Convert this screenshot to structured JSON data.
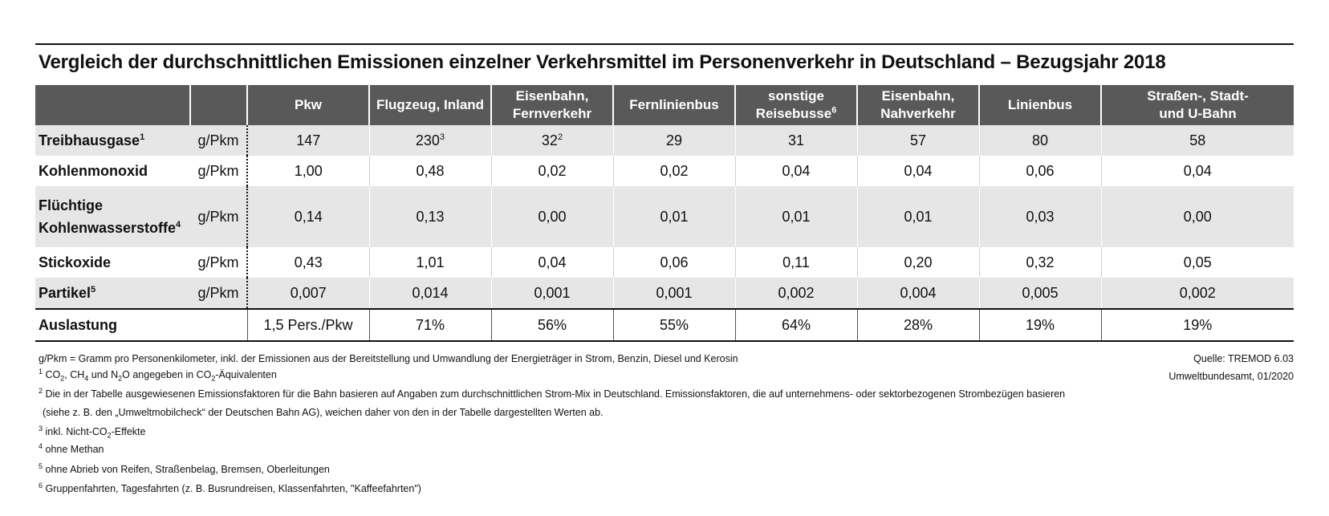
{
  "title": "Vergleich der durchschnittlichen Emissionen einzelner Verkehrsmittel im Personenverkehr in Deutschland – Bezugsjahr 2018",
  "columns": [
    {
      "l1": "Pkw",
      "l2": "",
      "sup": ""
    },
    {
      "l1": "Flugzeug, Inland",
      "l2": "",
      "sup": ""
    },
    {
      "l1": "Eisenbahn,",
      "l2": "Fernverkehr",
      "sup": ""
    },
    {
      "l1": "Fernlinienbus",
      "l2": "",
      "sup": ""
    },
    {
      "l1": "sonstige",
      "l2": "Reisebusse",
      "sup": "6"
    },
    {
      "l1": "Eisenbahn,",
      "l2": "Nahverkehr",
      "sup": ""
    },
    {
      "l1": "Linienbus",
      "l2": "",
      "sup": ""
    },
    {
      "l1": "Straßen-, Stadt-",
      "l2": "und U-Bahn",
      "sup": ""
    }
  ],
  "rows": [
    {
      "label_l1": "Treibhausgase",
      "label_l2": "",
      "sup": "1",
      "unit": "g/Pkm",
      "values": [
        "147",
        "230",
        "32",
        "29",
        "31",
        "57",
        "80",
        "58"
      ],
      "value_sups": [
        "",
        "3",
        "2",
        "",
        "",
        "",
        "",
        ""
      ]
    },
    {
      "label_l1": "Kohlenmonoxid",
      "label_l2": "",
      "sup": "",
      "unit": "g/Pkm",
      "values": [
        "1,00",
        "0,48",
        "0,02",
        "0,02",
        "0,04",
        "0,04",
        "0,06",
        "0,04"
      ],
      "value_sups": [
        "",
        "",
        "",
        "",
        "",
        "",
        "",
        ""
      ]
    },
    {
      "label_l1": "Flüchtige",
      "label_l2": "Kohlenwasserstoffe",
      "sup": "4",
      "unit": "g/Pkm",
      "values": [
        "0,14",
        "0,13",
        "0,00",
        "0,01",
        "0,01",
        "0,01",
        "0,03",
        "0,00"
      ],
      "value_sups": [
        "",
        "",
        "",
        "",
        "",
        "",
        "",
        ""
      ]
    },
    {
      "label_l1": "Stickoxide",
      "label_l2": "",
      "sup": "",
      "unit": "g/Pkm",
      "values": [
        "0,43",
        "1,01",
        "0,04",
        "0,06",
        "0,11",
        "0,20",
        "0,32",
        "0,05"
      ],
      "value_sups": [
        "",
        "",
        "",
        "",
        "",
        "",
        "",
        ""
      ]
    },
    {
      "label_l1": "Partikel",
      "label_l2": "",
      "sup": "5",
      "unit": "g/Pkm",
      "values": [
        "0,007",
        "0,014",
        "0,001",
        "0,001",
        "0,002",
        "0,004",
        "0,005",
        "0,002"
      ],
      "value_sups": [
        "",
        "",
        "",
        "",
        "",
        "",
        "",
        ""
      ]
    }
  ],
  "total": {
    "label": "Auslastung",
    "values": [
      "1,5 Pers./Pkw",
      "71%",
      "56%",
      "55%",
      "64%",
      "28%",
      "19%",
      "19%"
    ]
  },
  "footnotes": {
    "gpkm": "g/Pkm = Gramm pro Personenkilometer, inkl. der Emissionen aus der Bereitstellung und Umwandlung der Energieträger in Strom, Benzin, Diesel und Kerosin",
    "fn1_marker": "1",
    "fn1_parts": [
      "CO",
      "2",
      ", CH",
      "4",
      " und N",
      "2",
      "O angegeben in CO",
      "2",
      "-Äquivalenten"
    ],
    "fn2_marker": "2",
    "fn2_line1": "Die in der Tabelle ausgewiesenen Emissionsfaktoren für die Bahn basieren auf Angaben zum durchschnittlichen Strom-Mix in Deutschland. Emissionsfaktoren, die auf unternehmens- oder sektorbezogenen Strombezügen basieren",
    "fn2_line2": "(siehe z. B. den „Umweltmobilcheck“ der Deutschen Bahn AG), weichen daher von den in der Tabelle dargestellten Werten ab.",
    "fn3_marker": "3",
    "fn3_parts": [
      "inkl. Nicht-CO",
      "2",
      "-Effekte"
    ],
    "fn4_marker": "4",
    "fn4": "ohne Methan",
    "fn5_marker": "5",
    "fn5": "ohne Abrieb von Reifen, Straßenbelag, Bremsen, Oberleitungen",
    "fn6_marker": "6",
    "fn6": "Gruppenfahrten, Tagesfahrten (z. B. Busrundreisen, Klassenfahrten, \"Kaffeefahrten\")"
  },
  "source": {
    "line1": "Quelle: TREMOD 6.03",
    "line2": "Umweltbundesamt, 01/2020"
  }
}
